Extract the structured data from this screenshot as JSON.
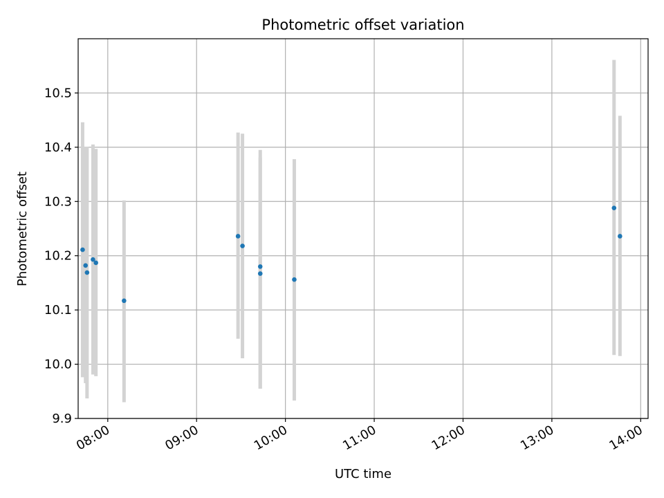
{
  "chart_data": {
    "type": "scatter",
    "title": "Photometric offset variation",
    "xlabel": "UTC time",
    "ylabel": "Photometric offset",
    "xlim": [
      "07:40",
      "14:05"
    ],
    "ylim": [
      9.9,
      10.6
    ],
    "x_ticks": [
      "08:00",
      "09:00",
      "10:00",
      "11:00",
      "12:00",
      "13:00",
      "14:00"
    ],
    "y_ticks": [
      "9.9",
      "10.0",
      "10.1",
      "10.2",
      "10.3",
      "10.4",
      "10.5"
    ],
    "grid": true,
    "marker_color": "#1f77b4",
    "errorbar_color": "#d3d3d3",
    "points": [
      {
        "x": "07:43",
        "y": 10.211,
        "ylow": 9.976,
        "yhigh": 10.446
      },
      {
        "x": "07:45",
        "y": 10.182,
        "ylow": 9.965,
        "yhigh": 10.401
      },
      {
        "x": "07:46",
        "y": 10.169,
        "ylow": 9.937,
        "yhigh": 10.401
      },
      {
        "x": "07:50",
        "y": 10.193,
        "ylow": 9.981,
        "yhigh": 10.405
      },
      {
        "x": "07:52",
        "y": 10.187,
        "ylow": 9.978,
        "yhigh": 10.397
      },
      {
        "x": "08:11",
        "y": 10.117,
        "ylow": 9.93,
        "yhigh": 10.302
      },
      {
        "x": "09:28",
        "y": 10.236,
        "ylow": 10.047,
        "yhigh": 10.427
      },
      {
        "x": "09:31",
        "y": 10.218,
        "ylow": 10.011,
        "yhigh": 10.425
      },
      {
        "x": "09:43",
        "y": 10.18,
        "ylow": 9.955,
        "yhigh": 10.395
      },
      {
        "x": "09:43",
        "y": 10.167,
        "ylow": 9.955,
        "yhigh": 10.381
      },
      {
        "x": "10:06",
        "y": 10.156,
        "ylow": 9.933,
        "yhigh": 10.378
      },
      {
        "x": "13:42",
        "y": 10.288,
        "ylow": 10.017,
        "yhigh": 10.561
      },
      {
        "x": "13:46",
        "y": 10.236,
        "ylow": 10.015,
        "yhigh": 10.458
      }
    ]
  }
}
